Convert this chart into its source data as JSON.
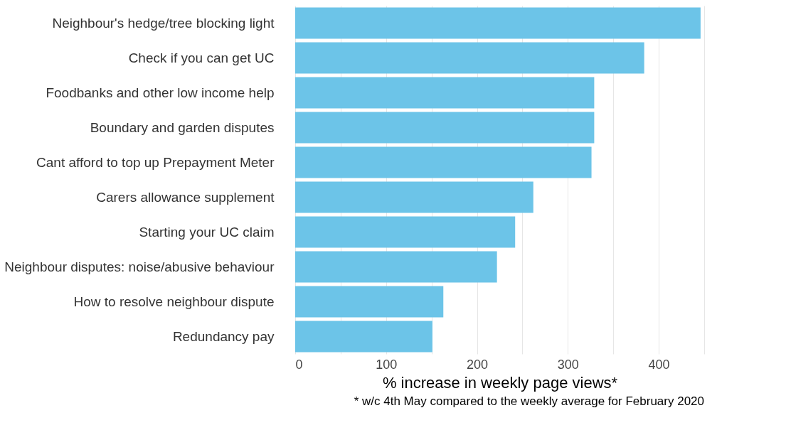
{
  "chart_data": {
    "type": "bar",
    "orientation": "horizontal",
    "categories": [
      "Neighbour's hedge/tree blocking light",
      "Check if you can get UC",
      "Foodbanks and other low income help",
      "Boundary and garden disputes",
      "Cant afford to top up Prepayment Meter",
      "Carers allowance supplement",
      "Starting your UC claim",
      "Neighbour disputes: noise/abusive behaviour",
      "How to resolve neighbour dispute",
      "Redundancy pay"
    ],
    "values": [
      446,
      384,
      329,
      329,
      326,
      262,
      242,
      222,
      163,
      151
    ],
    "color": "#6cc4e8",
    "xlim": [
      0,
      450
    ],
    "xticks": [
      0,
      {
        "value": 50,
        "label": null
      },
      100,
      {
        "value": 150,
        "label": null
      },
      200,
      {
        "value": 250,
        "label": null
      },
      300,
      {
        "value": 350,
        "label": null
      },
      400,
      {
        "value": 450,
        "label": null
      }
    ],
    "xlabel": "% increase in weekly page views*",
    "grid": "x",
    "annotations": [
      "* w/c 4th May compared to the weekly average for February 2020"
    ]
  }
}
